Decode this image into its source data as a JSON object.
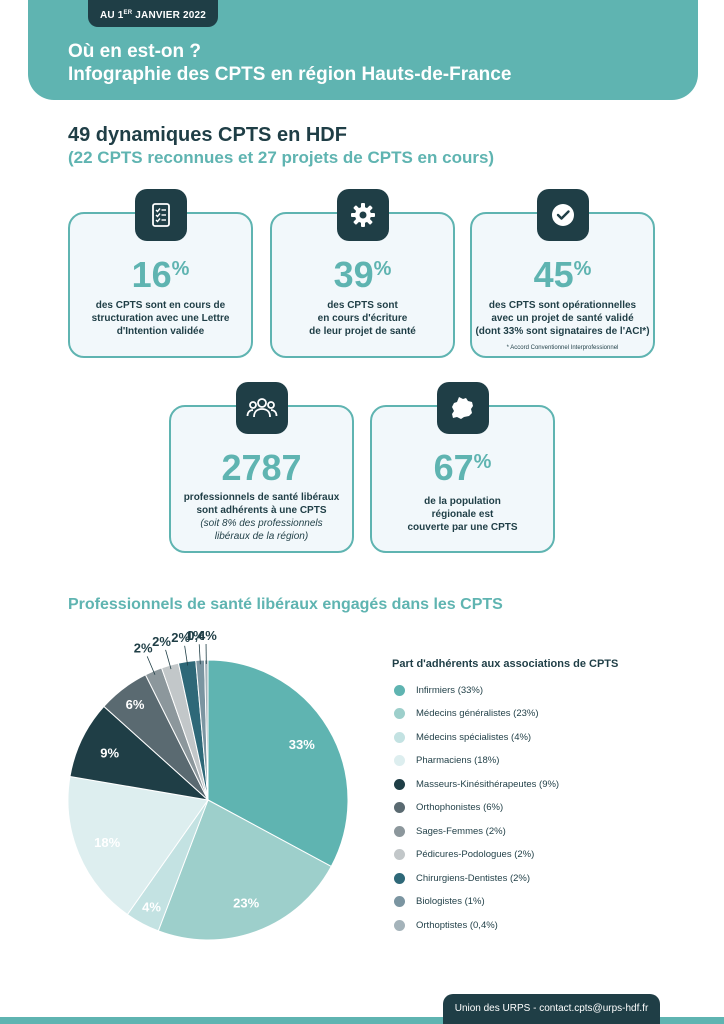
{
  "header": {
    "date_prefix": "AU 1",
    "date_sup": "ER",
    "date_suffix": " JANVIER 2022",
    "title_line1": "Où en est-on ?",
    "title_line2": "Infographie des CPTS en région Hauts-de-France"
  },
  "summary": {
    "title": "49 dynamiques CPTS en HDF",
    "subtitle": "(22 CPTS reconnues et 27 projets de CPTS en cours)"
  },
  "cards": [
    {
      "icon": "checklist-icon",
      "value": "16",
      "unit": "%",
      "lines": [
        "des CPTS sont en cours de",
        "structuration avec une Lettre",
        "d'Intention validée"
      ]
    },
    {
      "icon": "gear-icon",
      "value": "39",
      "unit": "%",
      "lines": [
        "des CPTS sont",
        "en cours d'écriture",
        "de leur projet de santé"
      ]
    },
    {
      "icon": "check-circle-icon",
      "value": "45",
      "unit": "%",
      "lines": [
        "des CPTS sont opérationnelles",
        "avec un projet de santé validé",
        "(dont 33% sont signataires de l'ACI*)"
      ],
      "note": "* Accord Conventionnel Interprofessionnel"
    },
    {
      "icon": "people-group-icon",
      "value": "2787",
      "unit": "",
      "lines": [
        "professionnels de santé libéraux",
        "sont adhérents à une CPTS"
      ],
      "italic_lines": [
        "(soit 8% des professionnels",
        "libéraux de la région)"
      ]
    },
    {
      "icon": "region-map-icon",
      "value": "67",
      "unit": "%",
      "lines": [
        "de la population",
        "régionale est",
        "couverte par une CPTS"
      ]
    }
  ],
  "pie_section_title": "Professionnels de santé libéraux engagés dans les CPTS",
  "chart_data": {
    "type": "pie",
    "title": "Part d'adhérents aux associations de CPTS",
    "legend_position": "right",
    "slices": [
      {
        "label": "Infirmiers (33%)",
        "value": 33,
        "display": "33%",
        "color": "#5fb4b1"
      },
      {
        "label": "Médecins généralistes (23%)",
        "value": 23,
        "display": "23%",
        "color": "#9dcfcb"
      },
      {
        "label": "Médecins spécialistes (4%)",
        "value": 4,
        "display": "4%",
        "color": "#c3e2e2"
      },
      {
        "label": "Pharmaciens (18%)",
        "value": 18,
        "display": "18%",
        "color": "#ddeeef"
      },
      {
        "label": "Masseurs-Kinésithérapeutes (9%)",
        "value": 9,
        "display": "9%",
        "color": "#1f3e46"
      },
      {
        "label": "Orthophonistes (6%)",
        "value": 6,
        "display": "6%",
        "color": "#5a6a71"
      },
      {
        "label": "Sages-Femmes (2%)",
        "value": 2,
        "display": "2%",
        "color": "#8c979c"
      },
      {
        "label": "Pédicures-Podologues (2%)",
        "value": 2,
        "display": "2%",
        "color": "#c2c7c9"
      },
      {
        "label": "Chirurgiens-Dentistes (2%)",
        "value": 2,
        "display": "2%",
        "color": "#2e6878"
      },
      {
        "label": "Biologistes (1%)",
        "value": 1,
        "display": "1%",
        "color": "#7b95a1"
      },
      {
        "label": "Orthoptistes (0,4%)",
        "value": 0.4,
        "display": "0,4%",
        "color": "#a4b3ba"
      }
    ]
  },
  "footer": "Union des URPS - contact.cpts@urps-hdf.fr"
}
